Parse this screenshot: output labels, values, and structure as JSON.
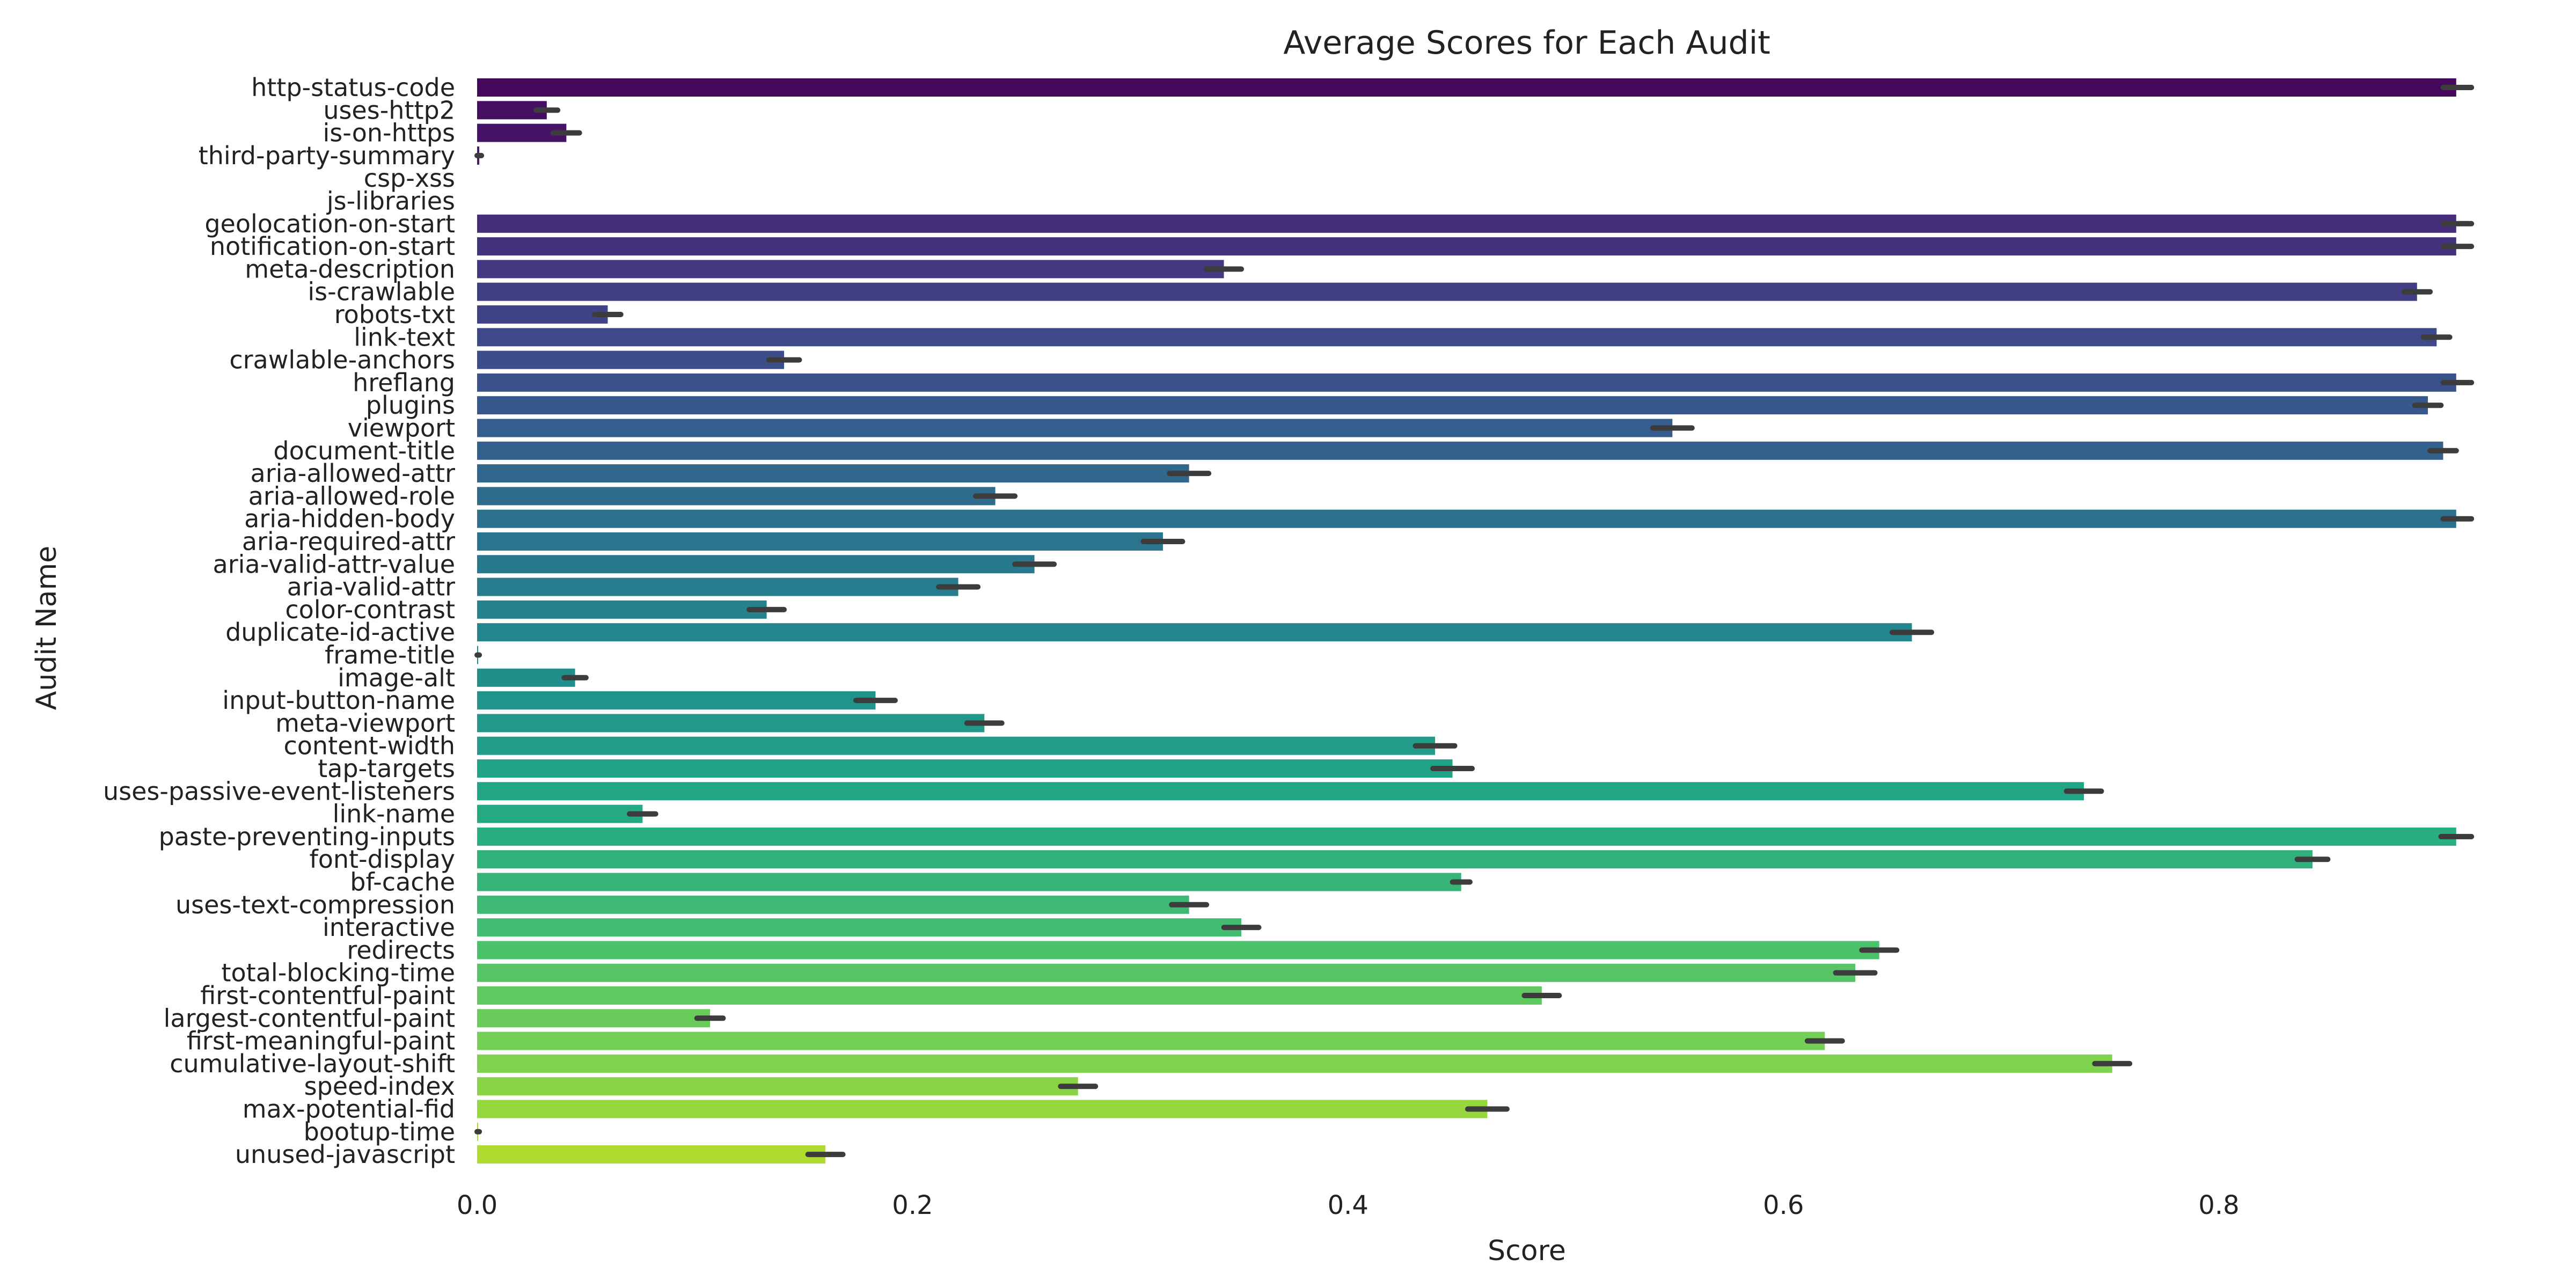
{
  "chart_data": {
    "type": "bar",
    "orientation": "horizontal",
    "title": "Average Scores for Each Audit",
    "xlabel": "Score",
    "ylabel": "Audit Name",
    "xlim": [
      0.0,
      0.92
    ],
    "xticks": [
      0.0,
      0.2,
      0.4,
      0.6,
      0.8
    ],
    "xtick_labels": [
      "0.0",
      "0.2",
      "0.4",
      "0.6",
      "0.8"
    ],
    "grid": false,
    "colormap": "viridis",
    "categories": [
      "http-status-code",
      "uses-http2",
      "is-on-https",
      "third-party-summary",
      "csp-xss",
      "js-libraries",
      "geolocation-on-start",
      "notification-on-start",
      "meta-description",
      "is-crawlable",
      "robots-txt",
      "link-text",
      "crawlable-anchors",
      "hreflang",
      "plugins",
      "viewport",
      "document-title",
      "aria-allowed-attr",
      "aria-allowed-role",
      "aria-hidden-body",
      "aria-required-attr",
      "aria-valid-attr-value",
      "aria-valid-attr",
      "color-contrast",
      "duplicate-id-active",
      "frame-title",
      "image-alt",
      "input-button-name",
      "meta-viewport",
      "content-width",
      "tap-targets",
      "uses-passive-event-listeners",
      "link-name",
      "paste-preventing-inputs",
      "font-display",
      "bf-cache",
      "uses-text-compression",
      "interactive",
      "redirects",
      "total-blocking-time",
      "first-contentful-paint",
      "largest-contentful-paint",
      "first-meaningful-paint",
      "cumulative-layout-shift",
      "speed-index",
      "max-potential-fid",
      "bootup-time",
      "unused-javascript"
    ],
    "values": [
      0.909,
      0.032,
      0.041,
      0.001,
      0.0,
      0.0,
      0.909,
      0.909,
      0.343,
      0.891,
      0.06,
      0.9,
      0.141,
      0.909,
      0.896,
      0.549,
      0.903,
      0.327,
      0.238,
      0.909,
      0.315,
      0.256,
      0.221,
      0.133,
      0.659,
      0.0005,
      0.045,
      0.183,
      0.233,
      0.44,
      0.448,
      0.738,
      0.076,
      0.909,
      0.843,
      0.452,
      0.327,
      0.351,
      0.644,
      0.633,
      0.489,
      0.107,
      0.619,
      0.751,
      0.276,
      0.464,
      0.0005,
      0.16
    ],
    "error_bars": [
      [
        0.903,
        0.916
      ],
      [
        0.027,
        0.037
      ],
      [
        0.035,
        0.047
      ],
      [
        0.0,
        0.002
      ],
      [
        0.0,
        0.0
      ],
      [
        0.0,
        0.0
      ],
      [
        0.903,
        0.916
      ],
      [
        0.903,
        0.916
      ],
      [
        0.335,
        0.351
      ],
      [
        0.885,
        0.897
      ],
      [
        0.054,
        0.066
      ],
      [
        0.894,
        0.906
      ],
      [
        0.134,
        0.148
      ],
      [
        0.903,
        0.916
      ],
      [
        0.89,
        0.902
      ],
      [
        0.54,
        0.558
      ],
      [
        0.897,
        0.909
      ],
      [
        0.318,
        0.336
      ],
      [
        0.229,
        0.247
      ],
      [
        0.903,
        0.916
      ],
      [
        0.306,
        0.324
      ],
      [
        0.247,
        0.265
      ],
      [
        0.212,
        0.23
      ],
      [
        0.125,
        0.141
      ],
      [
        0.65,
        0.668
      ],
      [
        0.0,
        0.001
      ],
      [
        0.04,
        0.05
      ],
      [
        0.174,
        0.192
      ],
      [
        0.225,
        0.241
      ],
      [
        0.431,
        0.449
      ],
      [
        0.439,
        0.457
      ],
      [
        0.73,
        0.746
      ],
      [
        0.07,
        0.082
      ],
      [
        0.902,
        0.916
      ],
      [
        0.836,
        0.85
      ],
      [
        0.448,
        0.456
      ],
      [
        0.319,
        0.335
      ],
      [
        0.343,
        0.359
      ],
      [
        0.636,
        0.652
      ],
      [
        0.624,
        0.642
      ],
      [
        0.481,
        0.497
      ],
      [
        0.101,
        0.113
      ],
      [
        0.611,
        0.627
      ],
      [
        0.743,
        0.759
      ],
      [
        0.268,
        0.284
      ],
      [
        0.455,
        0.473
      ],
      [
        0.0,
        0.001
      ],
      [
        0.152,
        0.168
      ]
    ]
  }
}
